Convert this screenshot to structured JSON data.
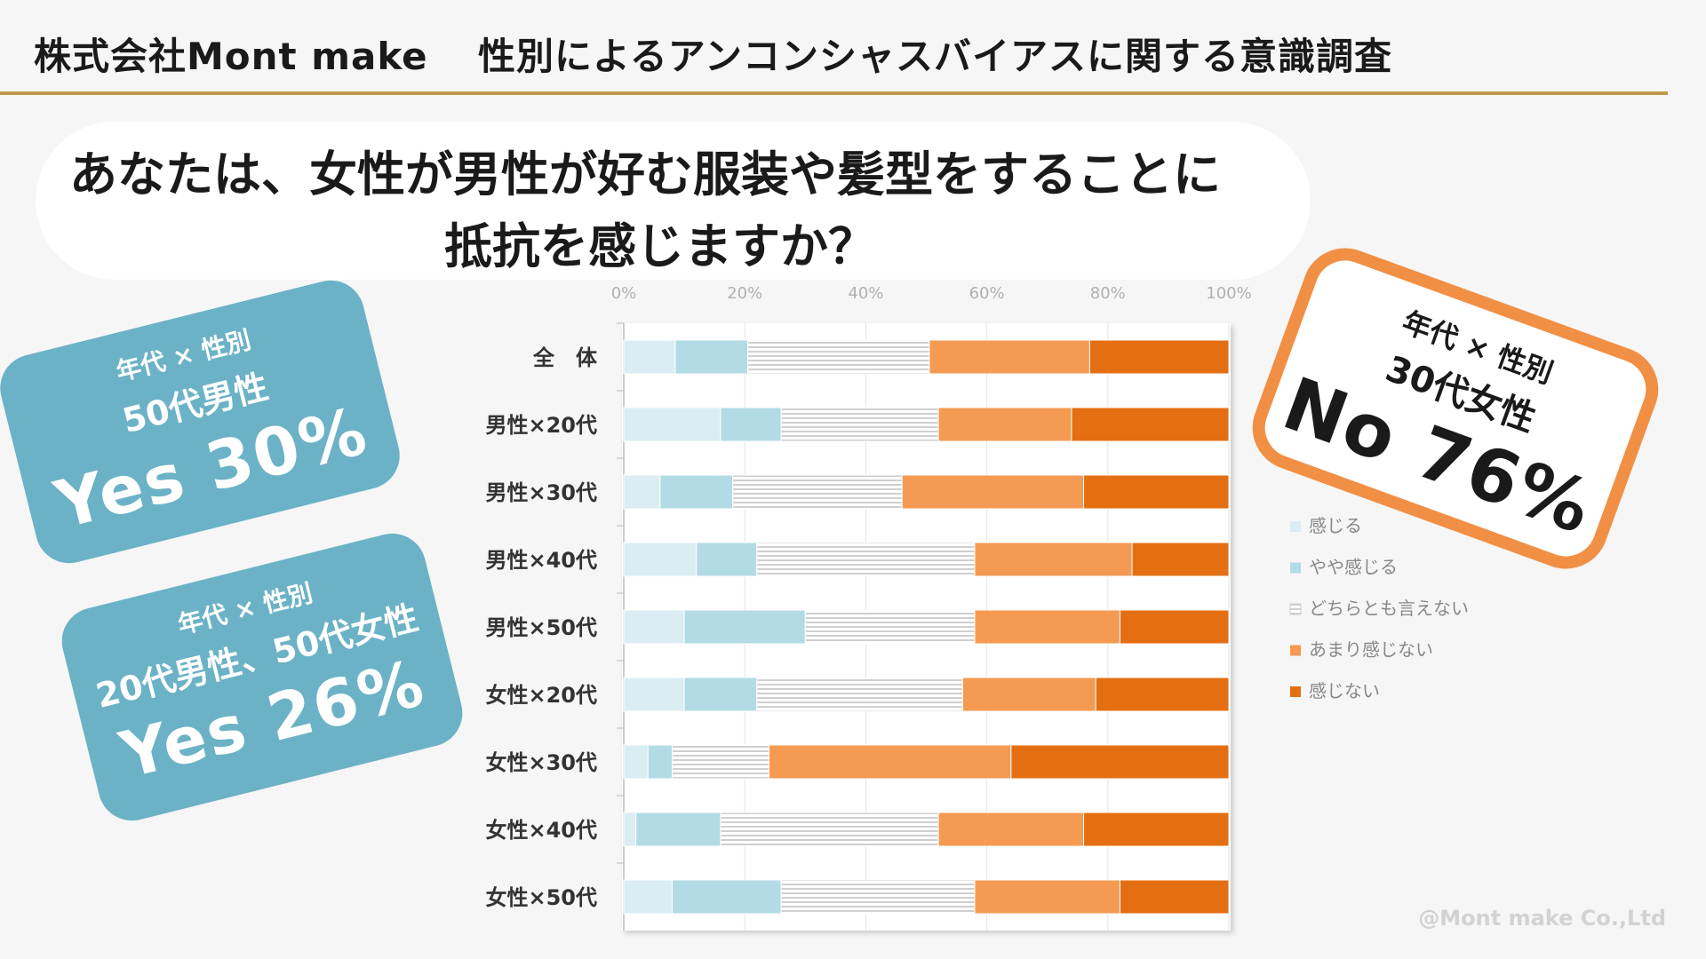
{
  "header": {
    "company": "株式会社Mont make",
    "title": "性別によるアンコンシャスバイアスに関する意識調査"
  },
  "question": {
    "line1": "あなたは、女性が男性が好む服装や髪型をすることに",
    "line2": "抵抗を感じますか？"
  },
  "callouts": [
    {
      "line1": "年代 × 性別",
      "line2": "50代男性",
      "line3": "Yes 30%"
    },
    {
      "line1": "年代 × 性別",
      "line2": "20代男性、50代女性",
      "line3": "Yes 26%"
    }
  ],
  "highlight": {
    "line1": "年代 × 性別",
    "line2": "30代女性",
    "line3": "No 76%"
  },
  "colors": {
    "s1": "#daedf3",
    "s2": "#b3dbe6",
    "s3_stripe": "#cfcfcf",
    "s4": "#f59a52",
    "s5": "#e46f12",
    "card": "#6bb2c6",
    "badge_border": "#f18f45",
    "rule": "#c09a4a"
  },
  "chart_data": {
    "type": "bar",
    "orientation": "horizontal",
    "stacked": true,
    "percent": true,
    "xlim": [
      0,
      100
    ],
    "ticks": [
      "0%",
      "20%",
      "40%",
      "60%",
      "80%",
      "100%"
    ],
    "categories": [
      "全　体",
      "男性×20代",
      "男性×30代",
      "男性×40代",
      "男性×50代",
      "女性×20代",
      "女性×30代",
      "女性×40代",
      "女性×50代"
    ],
    "series": [
      {
        "name": "感じる",
        "values": [
          8.5,
          16,
          6,
          12,
          10,
          10,
          4,
          2,
          8
        ]
      },
      {
        "name": "やや感じる",
        "values": [
          12,
          10,
          12,
          10,
          20,
          12,
          4,
          14,
          18
        ]
      },
      {
        "name": "どちらとも言えない",
        "values": [
          30,
          26,
          28,
          36,
          28,
          34,
          16,
          36,
          32
        ]
      },
      {
        "name": "あまり感じない",
        "values": [
          26.5,
          22,
          30,
          26,
          24,
          22,
          40,
          24,
          24
        ]
      },
      {
        "name": "感じない",
        "values": [
          23,
          26,
          24,
          16,
          18,
          22,
          36,
          24,
          18
        ]
      }
    ],
    "legend_position": "right"
  },
  "watermark": "@Mont make Co.,Ltd"
}
